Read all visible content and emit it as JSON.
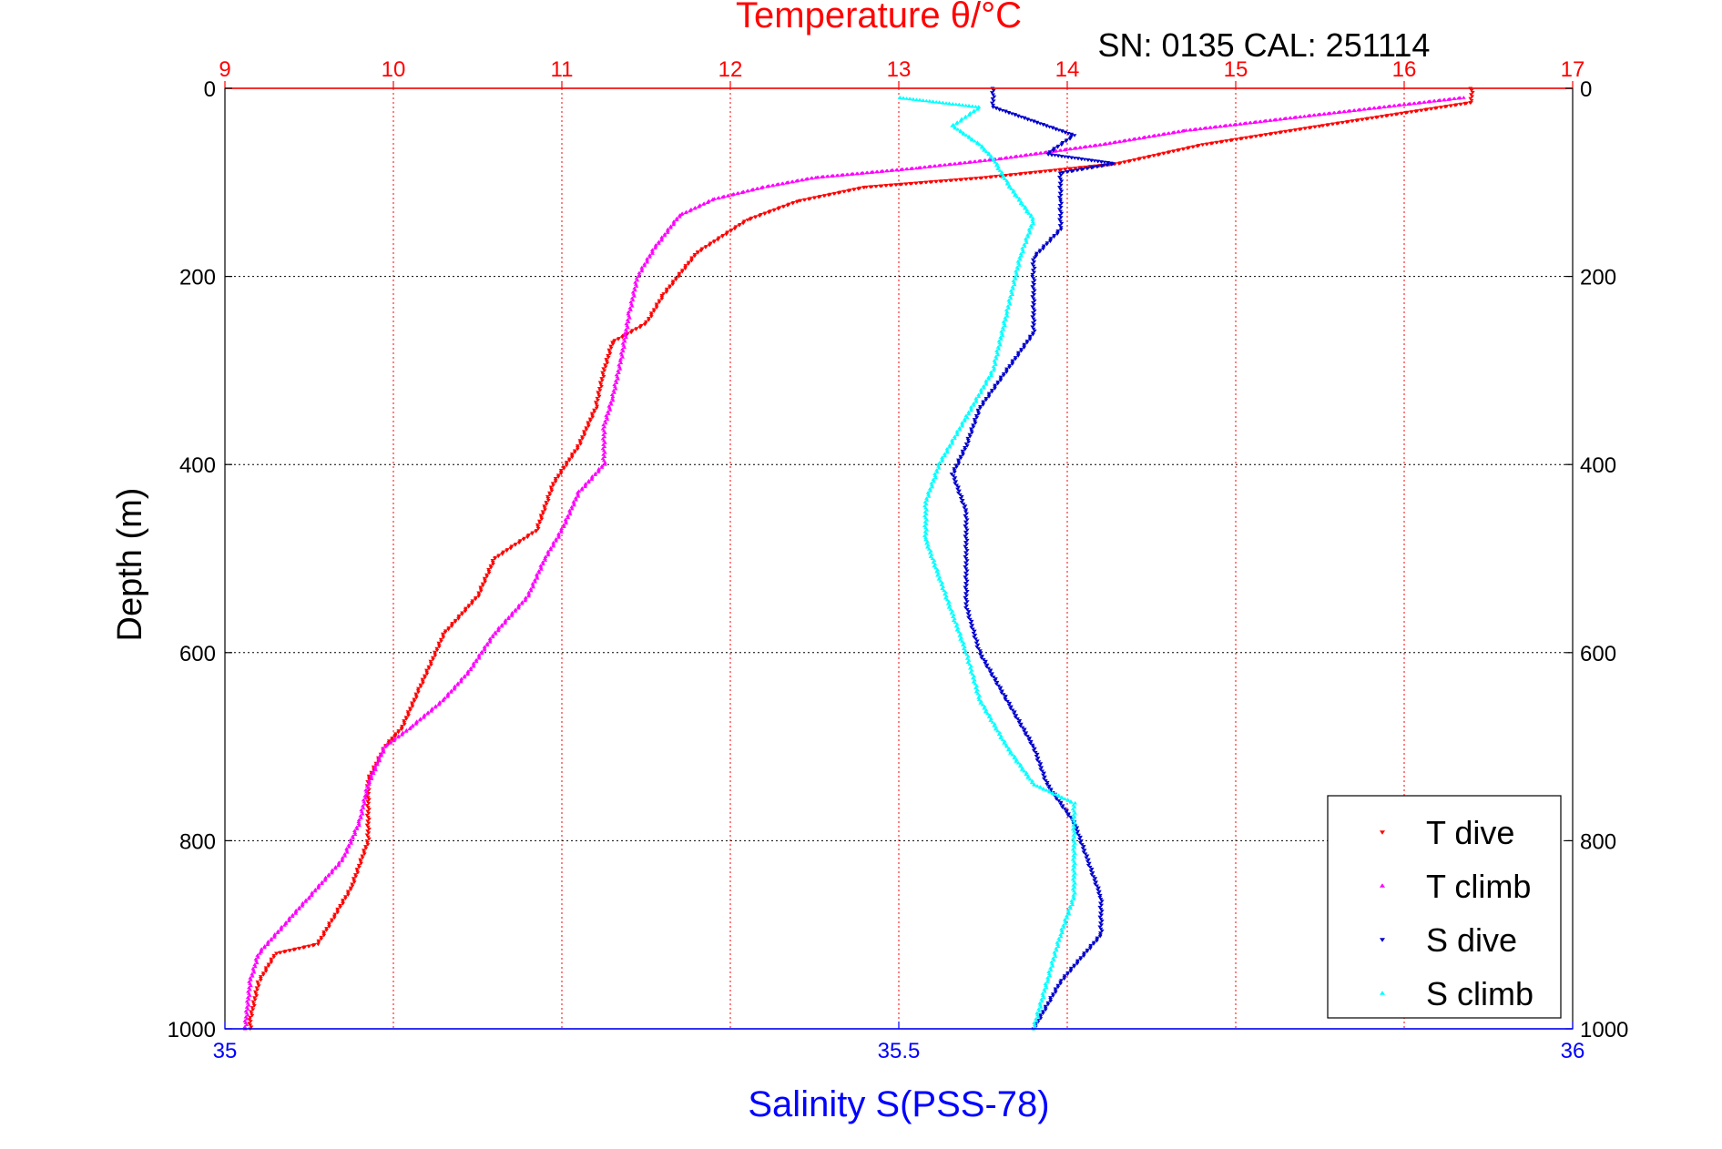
{
  "chart_data": {
    "type": "scatter",
    "title": "Temperature θ/°C",
    "subtitle": "SN: 0135  CAL: 251114",
    "xlabel_top": "",
    "xlabel_bottom": "Salinity S(PSS-78)",
    "ylabel": "Depth (m)",
    "temperature_axis": {
      "range": [
        9,
        17
      ],
      "ticks": [
        "9",
        "10",
        "11",
        "12",
        "13",
        "14",
        "15",
        "16",
        "17"
      ]
    },
    "salinity_axis": {
      "range": [
        35,
        36
      ],
      "ticks": [
        "35",
        "35.5",
        "36"
      ],
      "tick_values": [
        35,
        35.5,
        36
      ]
    },
    "depth_axis": {
      "range": [
        0,
        1000
      ],
      "reversed": true,
      "ticks": [
        "0",
        "200",
        "400",
        "600",
        "800",
        "1000"
      ],
      "tick_values": [
        0,
        200,
        400,
        600,
        800,
        1000
      ]
    },
    "grid": true,
    "legend_position": "bottom-right",
    "colors": {
      "temperature_axis": "#ff0000",
      "salinity_axis": "#0000ff",
      "t_dive": "#ff0000",
      "t_climb": "#ff00ff",
      "s_dive": "#0000cc",
      "s_climb": "#00ffff"
    },
    "series": [
      {
        "name": "T dive",
        "variable": "temperature",
        "marker": "triangle-down",
        "color": "#ff0000",
        "points": [
          [
            16.4,
            0
          ],
          [
            16.4,
            15
          ],
          [
            15.5,
            40
          ],
          [
            14.8,
            60
          ],
          [
            14.3,
            80
          ],
          [
            13.5,
            95
          ],
          [
            12.8,
            105
          ],
          [
            12.4,
            120
          ],
          [
            12.1,
            140
          ],
          [
            11.8,
            175
          ],
          [
            11.6,
            220
          ],
          [
            11.5,
            250
          ],
          [
            11.3,
            270
          ],
          [
            11.25,
            300
          ],
          [
            11.2,
            340
          ],
          [
            11.1,
            380
          ],
          [
            10.95,
            420
          ],
          [
            10.85,
            470
          ],
          [
            10.6,
            500
          ],
          [
            10.5,
            540
          ],
          [
            10.3,
            580
          ],
          [
            10.15,
            640
          ],
          [
            10.05,
            680
          ],
          [
            9.95,
            700
          ],
          [
            9.85,
            735
          ],
          [
            9.85,
            800
          ],
          [
            9.75,
            850
          ],
          [
            9.65,
            880
          ],
          [
            9.55,
            910
          ],
          [
            9.3,
            920
          ],
          [
            9.2,
            950
          ],
          [
            9.15,
            990
          ],
          [
            9.15,
            1000
          ]
        ]
      },
      {
        "name": "T climb",
        "variable": "temperature",
        "marker": "triangle-up",
        "color": "#ff00ff",
        "points": [
          [
            16.35,
            10
          ],
          [
            15.4,
            30
          ],
          [
            14.7,
            45
          ],
          [
            14.2,
            60
          ],
          [
            13.6,
            75
          ],
          [
            13.1,
            85
          ],
          [
            12.5,
            95
          ],
          [
            12.2,
            105
          ],
          [
            11.9,
            118
          ],
          [
            11.7,
            135
          ],
          [
            11.55,
            170
          ],
          [
            11.45,
            200
          ],
          [
            11.4,
            240
          ],
          [
            11.35,
            290
          ],
          [
            11.3,
            330
          ],
          [
            11.25,
            360
          ],
          [
            11.25,
            400
          ],
          [
            11.1,
            430
          ],
          [
            11.0,
            470
          ],
          [
            10.9,
            500
          ],
          [
            10.8,
            540
          ],
          [
            10.6,
            580
          ],
          [
            10.45,
            620
          ],
          [
            10.3,
            650
          ],
          [
            10.1,
            680
          ],
          [
            9.95,
            700
          ],
          [
            9.85,
            740
          ],
          [
            9.8,
            780
          ],
          [
            9.7,
            820
          ],
          [
            9.5,
            860
          ],
          [
            9.35,
            890
          ],
          [
            9.2,
            920
          ],
          [
            9.15,
            950
          ],
          [
            9.12,
            1000
          ]
        ]
      },
      {
        "name": "S dive",
        "variable": "salinity",
        "marker": "triangle-down",
        "color": "#0000cc",
        "points": [
          [
            35.57,
            0
          ],
          [
            35.57,
            20
          ],
          [
            35.63,
            50
          ],
          [
            35.61,
            70
          ],
          [
            35.66,
            80
          ],
          [
            35.62,
            90
          ],
          [
            35.62,
            120
          ],
          [
            35.62,
            150
          ],
          [
            35.6,
            180
          ],
          [
            35.6,
            200
          ],
          [
            35.6,
            260
          ],
          [
            35.58,
            300
          ],
          [
            35.56,
            340
          ],
          [
            35.55,
            380
          ],
          [
            35.54,
            410
          ],
          [
            35.55,
            450
          ],
          [
            35.55,
            500
          ],
          [
            35.55,
            550
          ],
          [
            35.56,
            600
          ],
          [
            35.58,
            650
          ],
          [
            35.6,
            700
          ],
          [
            35.61,
            740
          ],
          [
            35.63,
            780
          ],
          [
            35.64,
            820
          ],
          [
            35.65,
            860
          ],
          [
            35.65,
            900
          ],
          [
            35.62,
            950
          ],
          [
            35.6,
            1000
          ]
        ]
      },
      {
        "name": "S climb",
        "variable": "salinity",
        "marker": "triangle-up",
        "color": "#00ffff",
        "points": [
          [
            35.5,
            10
          ],
          [
            35.56,
            20
          ],
          [
            35.54,
            40
          ],
          [
            35.56,
            60
          ],
          [
            35.57,
            75
          ],
          [
            35.58,
            100
          ],
          [
            35.6,
            140
          ],
          [
            35.59,
            180
          ],
          [
            35.58,
            240
          ],
          [
            35.57,
            300
          ],
          [
            35.55,
            350
          ],
          [
            35.53,
            400
          ],
          [
            35.52,
            440
          ],
          [
            35.52,
            480
          ],
          [
            35.53,
            520
          ],
          [
            35.54,
            560
          ],
          [
            35.55,
            600
          ],
          [
            35.56,
            650
          ],
          [
            35.58,
            700
          ],
          [
            35.6,
            740
          ],
          [
            35.63,
            760
          ],
          [
            35.63,
            820
          ],
          [
            35.63,
            860
          ],
          [
            35.62,
            900
          ],
          [
            35.61,
            950
          ],
          [
            35.6,
            1000
          ]
        ]
      }
    ]
  }
}
